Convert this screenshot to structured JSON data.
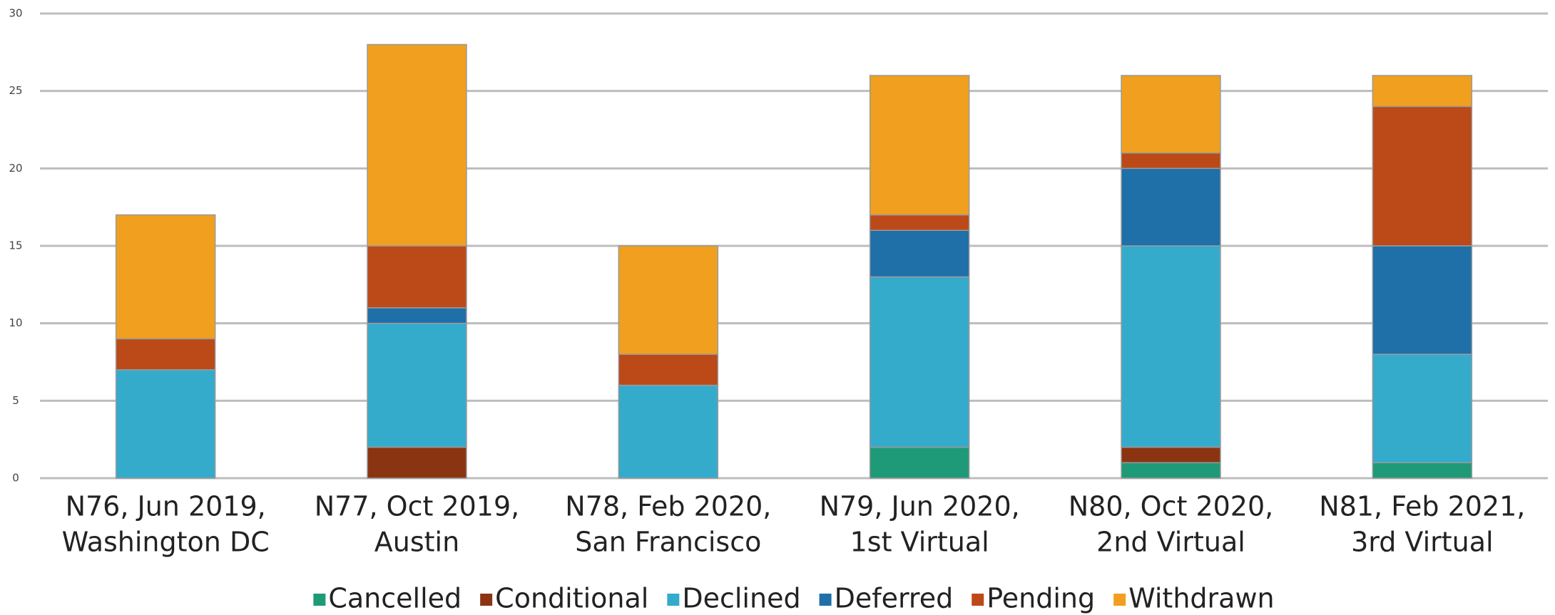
{
  "chart_data": {
    "type": "stacked_bar",
    "categories": [
      [
        "N76, Jun 2019,",
        "Washington DC"
      ],
      [
        "N77, Oct 2019,",
        "Austin"
      ],
      [
        "N78, Feb 2020,",
        "San Francisco"
      ],
      [
        "N79, Jun 2020,",
        "1st Virtual"
      ],
      [
        "N80, Oct 2020,",
        "2nd Virtual"
      ],
      [
        "N81, Feb 2021,",
        "3rd Virtual"
      ]
    ],
    "series": [
      {
        "name": "Cancelled",
        "color": "#1e9a78",
        "values": [
          0,
          0,
          0,
          2,
          1,
          1
        ]
      },
      {
        "name": "Conditional",
        "color": "#8b3412",
        "values": [
          0,
          2,
          0,
          0,
          1,
          0
        ]
      },
      {
        "name": "Declined",
        "color": "#35abcc",
        "values": [
          7,
          8,
          6,
          11,
          13,
          7
        ]
      },
      {
        "name": "Deferred",
        "color": "#1f6fa8",
        "values": [
          0,
          1,
          0,
          3,
          5,
          7
        ]
      },
      {
        "name": "Pending",
        "color": "#bb4a18",
        "values": [
          2,
          4,
          2,
          1,
          1,
          9
        ]
      },
      {
        "name": "Withdrawn",
        "color": "#f0a01e",
        "values": [
          8,
          13,
          7,
          9,
          5,
          2
        ]
      }
    ],
    "ylim": [
      0,
      30
    ],
    "yticks": [
      0,
      5,
      10,
      15,
      20,
      25,
      30
    ],
    "grid": true,
    "legend": "bottom"
  }
}
